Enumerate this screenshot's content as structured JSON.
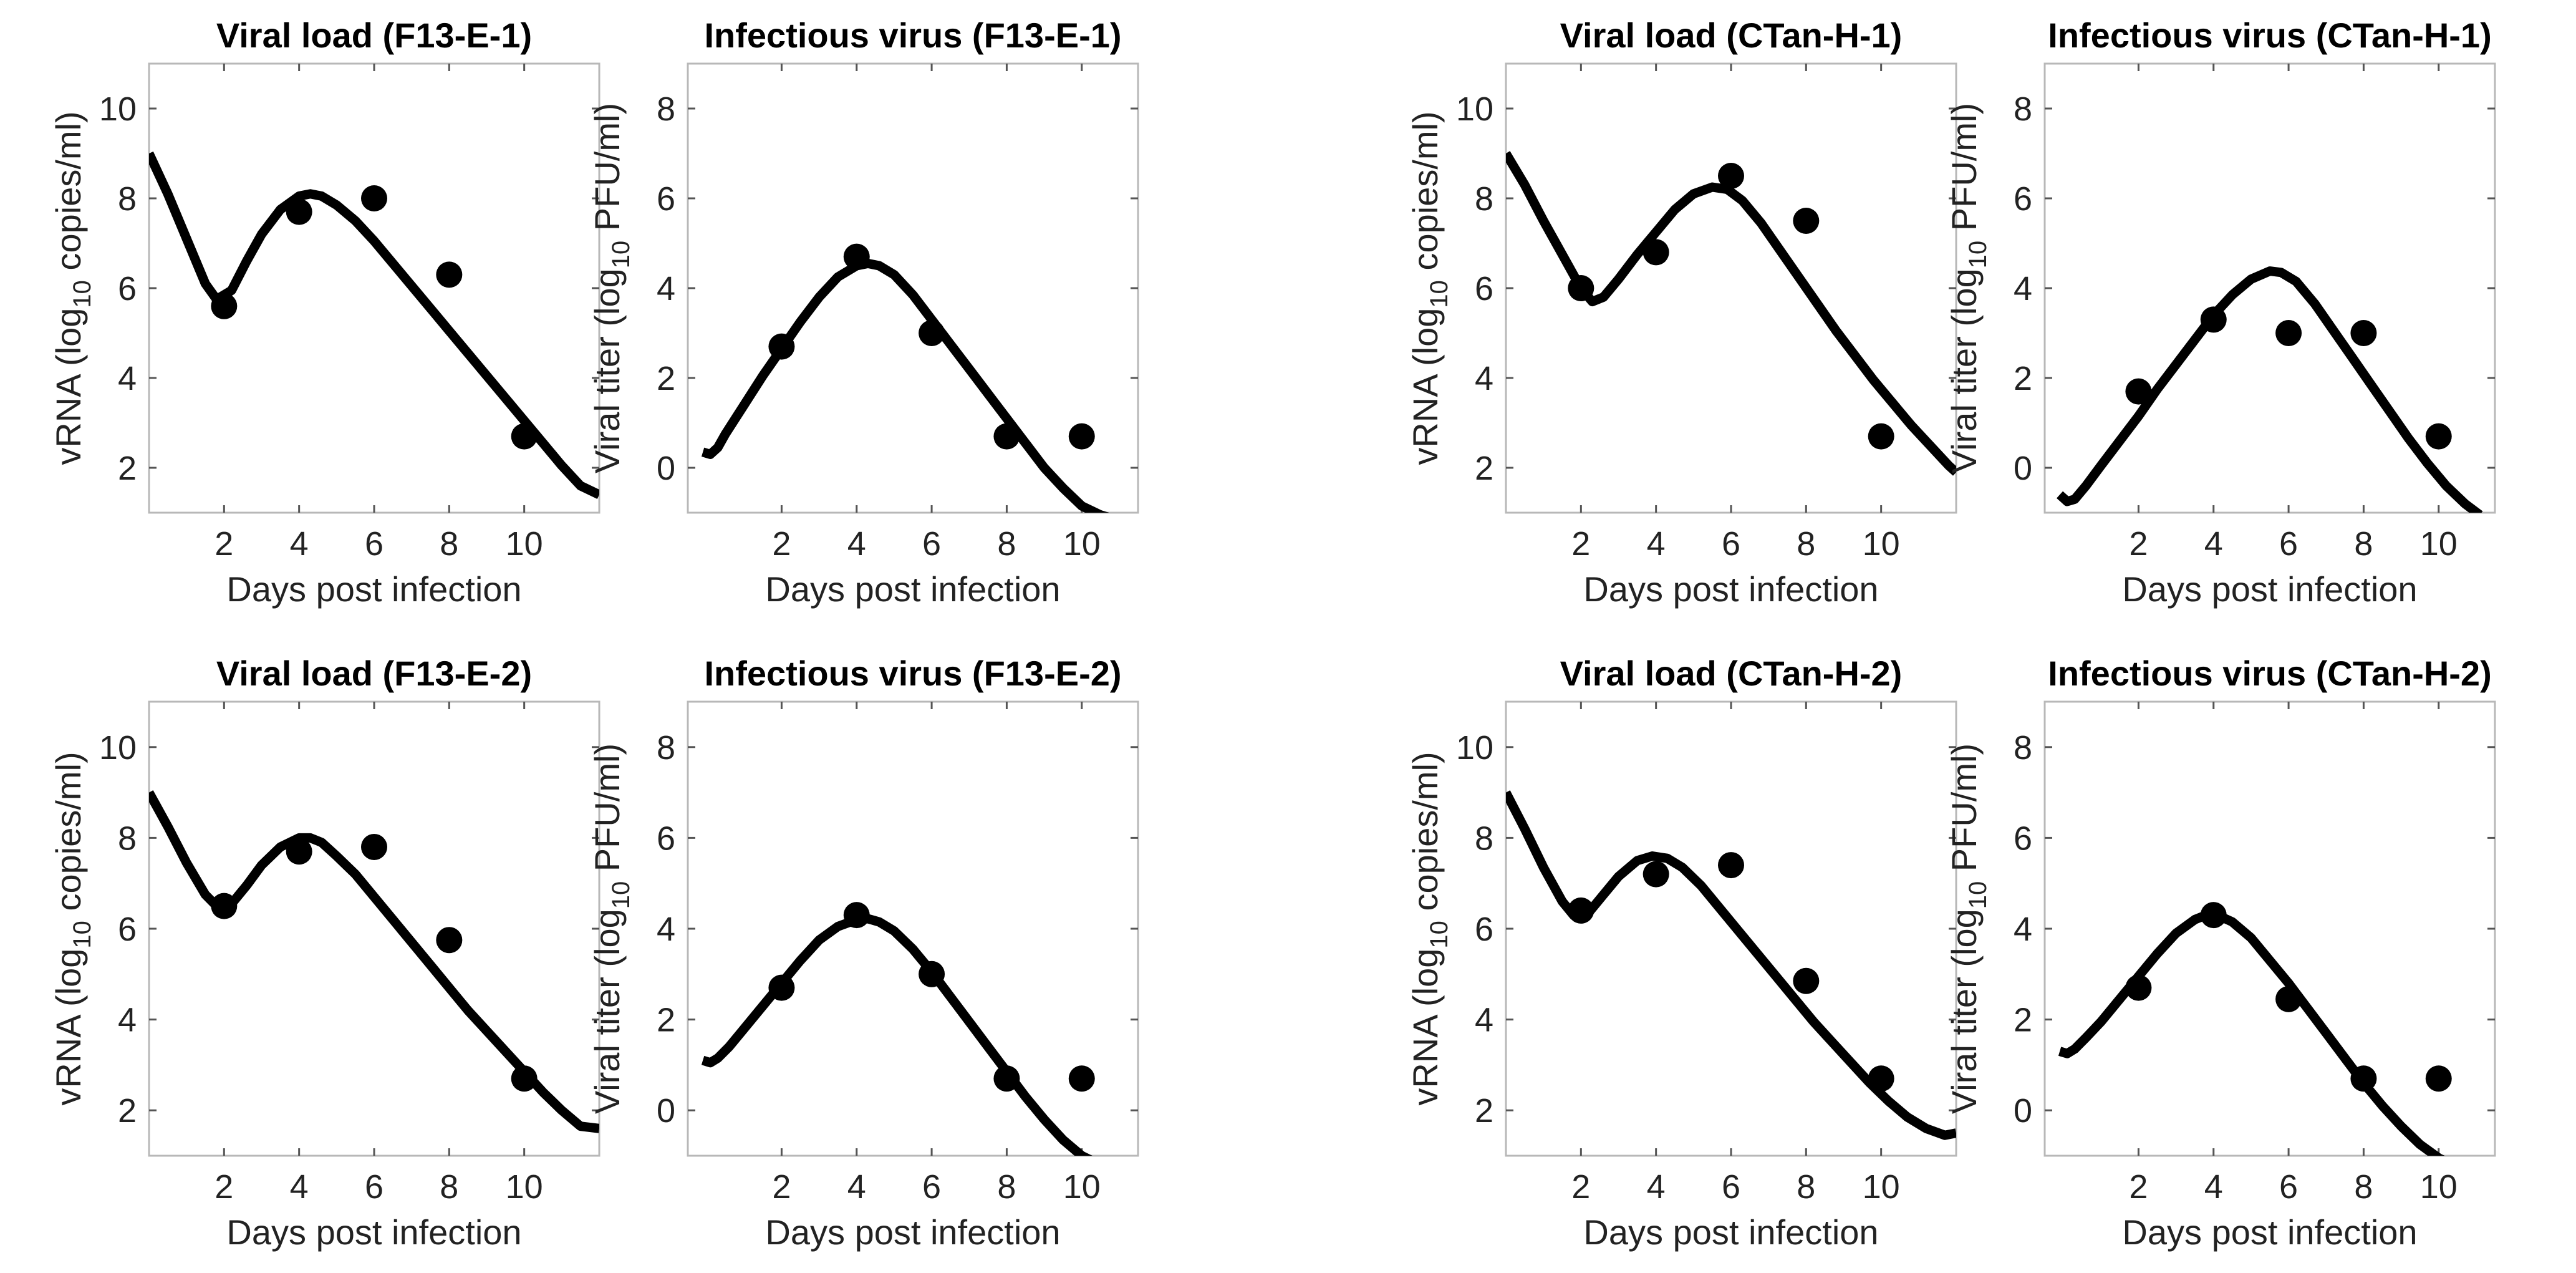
{
  "chart_data": [
    {
      "type": "scatter",
      "title": "Viral load (F13-E-1)",
      "xlabel": "Days post infection",
      "ylabel_parts": [
        "vRNA (log",
        "10",
        " copies/ml)"
      ],
      "xlim": [
        0,
        12
      ],
      "ylim": [
        1,
        11
      ],
      "xticks": [
        2,
        4,
        6,
        8,
        10
      ],
      "yticks": [
        2,
        4,
        6,
        8,
        10
      ],
      "x": [
        2,
        4,
        6,
        8,
        10
      ],
      "values": [
        5.6,
        7.7,
        8.0,
        6.3,
        2.7
      ],
      "fit": {
        "x": [
          0,
          0.5,
          1,
          1.5,
          1.8,
          2.2,
          2.6,
          3,
          3.5,
          4,
          4.3,
          4.6,
          5,
          5.5,
          6,
          6.5,
          7,
          7.5,
          8,
          8.5,
          9,
          9.5,
          10,
          10.5,
          11,
          11.5,
          12
        ],
        "y": [
          9.0,
          8.1,
          7.1,
          6.1,
          5.75,
          5.95,
          6.6,
          7.2,
          7.75,
          8.05,
          8.1,
          8.05,
          7.85,
          7.5,
          7.05,
          6.55,
          6.05,
          5.55,
          5.05,
          4.55,
          4.05,
          3.55,
          3.05,
          2.55,
          2.05,
          1.6,
          1.4
        ]
      }
    },
    {
      "type": "scatter",
      "title": "Infectious virus (F13-E-1)",
      "xlabel": "Days post infection",
      "ylabel_parts": [
        "Viral titer (log",
        "10",
        " PFU/ml)"
      ],
      "xlim": [
        -0.5,
        11.5
      ],
      "ylim": [
        -1,
        9
      ],
      "xticks": [
        2,
        4,
        6,
        8,
        10
      ],
      "yticks": [
        0,
        2,
        4,
        6,
        8
      ],
      "x": [
        2,
        4,
        6,
        8,
        10
      ],
      "values": [
        2.7,
        4.7,
        3.0,
        0.7,
        0.7
      ],
      "fit": {
        "x": [
          -0.1,
          0.1,
          0.3,
          0.5,
          1,
          1.5,
          2,
          2.5,
          3,
          3.5,
          4,
          4.3,
          4.6,
          5,
          5.5,
          6,
          6.5,
          7,
          7.5,
          8,
          8.5,
          9,
          9.5,
          10,
          10.5,
          10.9
        ],
        "y": [
          0.35,
          0.3,
          0.45,
          0.75,
          1.4,
          2.05,
          2.65,
          3.25,
          3.8,
          4.25,
          4.5,
          4.55,
          4.5,
          4.3,
          3.85,
          3.3,
          2.75,
          2.2,
          1.65,
          1.1,
          0.55,
          0.0,
          -0.45,
          -0.85,
          -1.05,
          -1.15
        ]
      }
    },
    {
      "type": "scatter",
      "title": "Viral load (CTan-H-1)",
      "xlabel": "Days post infection",
      "ylabel_parts": [
        "vRNA (log",
        "10",
        " copies/ml)"
      ],
      "xlim": [
        0,
        12
      ],
      "ylim": [
        1,
        11
      ],
      "xticks": [
        2,
        4,
        6,
        8,
        10
      ],
      "yticks": [
        2,
        4,
        6,
        8,
        10
      ],
      "x": [
        2,
        4,
        6,
        8,
        10
      ],
      "values": [
        6.0,
        6.8,
        8.5,
        7.5,
        2.7
      ],
      "fit": {
        "x": [
          0,
          0.5,
          1,
          1.5,
          2,
          2.3,
          2.6,
          3,
          3.5,
          4,
          4.5,
          5,
          5.5,
          5.9,
          6.3,
          6.8,
          7.3,
          7.8,
          8.3,
          8.8,
          9.3,
          9.8,
          10.3,
          10.8,
          11.3,
          11.8,
          12
        ],
        "y": [
          9.0,
          8.3,
          7.5,
          6.75,
          6.0,
          5.7,
          5.8,
          6.2,
          6.75,
          7.25,
          7.75,
          8.1,
          8.25,
          8.2,
          7.95,
          7.45,
          6.85,
          6.25,
          5.65,
          5.05,
          4.5,
          3.95,
          3.45,
          2.95,
          2.5,
          2.05,
          1.9
        ]
      }
    },
    {
      "type": "scatter",
      "title": "Infectious virus (CTan-H-1)",
      "xlabel": "Days post infection",
      "ylabel_parts": [
        "Viral titer (log",
        "10",
        " PFU/ml)"
      ],
      "xlim": [
        -0.5,
        11.5
      ],
      "ylim": [
        -1,
        9
      ],
      "xticks": [
        2,
        4,
        6,
        8,
        10
      ],
      "yticks": [
        0,
        2,
        4,
        6,
        8
      ],
      "x": [
        2,
        4,
        6,
        8,
        10
      ],
      "values": [
        1.7,
        3.3,
        3.0,
        3.0,
        0.7
      ],
      "fit": {
        "x": [
          -0.1,
          0.1,
          0.3,
          0.6,
          1,
          1.5,
          2,
          2.5,
          3,
          3.5,
          4,
          4.5,
          5,
          5.5,
          5.8,
          6.2,
          6.7,
          7.2,
          7.7,
          8.2,
          8.7,
          9.2,
          9.7,
          10.2,
          10.7,
          11.1
        ],
        "y": [
          -0.6,
          -0.75,
          -0.7,
          -0.4,
          0.05,
          0.6,
          1.15,
          1.75,
          2.3,
          2.85,
          3.4,
          3.85,
          4.2,
          4.38,
          4.35,
          4.15,
          3.65,
          3.05,
          2.45,
          1.85,
          1.25,
          0.65,
          0.1,
          -0.4,
          -0.8,
          -1.05
        ]
      }
    },
    {
      "type": "scatter",
      "title": "Viral load (F13-E-2)",
      "xlabel": "Days post infection",
      "ylabel_parts": [
        "vRNA (log",
        "10",
        " copies/ml)"
      ],
      "xlim": [
        0,
        12
      ],
      "ylim": [
        1,
        11
      ],
      "xticks": [
        2,
        4,
        6,
        8,
        10
      ],
      "yticks": [
        2,
        4,
        6,
        8,
        10
      ],
      "x": [
        2,
        4,
        6,
        8,
        10
      ],
      "values": [
        6.5,
        7.7,
        7.8,
        5.75,
        2.7
      ],
      "fit": {
        "x": [
          0,
          0.5,
          1,
          1.5,
          1.8,
          2.2,
          2.6,
          3,
          3.5,
          4,
          4.3,
          4.6,
          5,
          5.5,
          6,
          6.5,
          7,
          7.5,
          8,
          8.5,
          9,
          9.5,
          10,
          10.5,
          11,
          11.5,
          12
        ],
        "y": [
          9.0,
          8.25,
          7.45,
          6.75,
          6.5,
          6.55,
          6.95,
          7.4,
          7.8,
          8.0,
          8.0,
          7.9,
          7.6,
          7.2,
          6.7,
          6.2,
          5.7,
          5.2,
          4.7,
          4.2,
          3.75,
          3.3,
          2.85,
          2.4,
          2.0,
          1.65,
          1.6
        ]
      }
    },
    {
      "type": "scatter",
      "title": "Infectious virus (F13-E-2)",
      "xlabel": "Days post infection",
      "ylabel_parts": [
        "Viral titer (log",
        "10",
        " PFU/ml)"
      ],
      "xlim": [
        -0.5,
        11.5
      ],
      "ylim": [
        -1,
        9
      ],
      "xticks": [
        2,
        4,
        6,
        8,
        10
      ],
      "yticks": [
        0,
        2,
        4,
        6,
        8
      ],
      "x": [
        2,
        4,
        6,
        8,
        10
      ],
      "values": [
        2.7,
        4.3,
        3.0,
        0.7,
        0.7
      ],
      "fit": {
        "x": [
          -0.1,
          0.1,
          0.3,
          0.6,
          1,
          1.5,
          2,
          2.5,
          3,
          3.5,
          4,
          4.3,
          4.6,
          5,
          5.5,
          6,
          6.5,
          7,
          7.5,
          8,
          8.5,
          9,
          9.5,
          10,
          10.5,
          11
        ],
        "y": [
          1.1,
          1.05,
          1.15,
          1.4,
          1.8,
          2.3,
          2.8,
          3.3,
          3.75,
          4.05,
          4.2,
          4.22,
          4.15,
          3.95,
          3.55,
          3.05,
          2.5,
          1.95,
          1.4,
          0.85,
          0.3,
          -0.2,
          -0.65,
          -1.0,
          -1.2,
          -1.3
        ]
      }
    },
    {
      "type": "scatter",
      "title": "Viral load (CTan-H-2)",
      "xlabel": "Days post infection",
      "ylabel_parts": [
        "vRNA (log",
        "10",
        " copies/ml)"
      ],
      "xlim": [
        0,
        12
      ],
      "ylim": [
        1,
        11
      ],
      "xticks": [
        2,
        4,
        6,
        8,
        10
      ],
      "yticks": [
        2,
        4,
        6,
        8,
        10
      ],
      "x": [
        2,
        4,
        6,
        8,
        10
      ],
      "values": [
        6.4,
        7.2,
        7.4,
        4.85,
        2.7
      ],
      "fit": {
        "x": [
          0,
          0.5,
          1,
          1.5,
          1.8,
          2.2,
          2.6,
          3,
          3.5,
          3.9,
          4.3,
          4.7,
          5.2,
          5.7,
          6.2,
          6.7,
          7.2,
          7.7,
          8.2,
          8.7,
          9.2,
          9.7,
          10.2,
          10.7,
          11.2,
          11.7,
          12
        ],
        "y": [
          9.0,
          8.2,
          7.35,
          6.6,
          6.3,
          6.35,
          6.75,
          7.15,
          7.5,
          7.6,
          7.55,
          7.35,
          6.95,
          6.45,
          5.95,
          5.45,
          4.95,
          4.45,
          3.95,
          3.5,
          3.05,
          2.6,
          2.2,
          1.85,
          1.6,
          1.45,
          1.5
        ]
      }
    },
    {
      "type": "scatter",
      "title": "Infectious virus (CTan-H-2)",
      "xlabel": "Days post infection",
      "ylabel_parts": [
        "Viral titer (log",
        "10",
        " PFU/ml)"
      ],
      "xlim": [
        -0.5,
        11.5
      ],
      "ylim": [
        -1,
        9
      ],
      "xticks": [
        2,
        4,
        6,
        8,
        10
      ],
      "yticks": [
        0,
        2,
        4,
        6,
        8
      ],
      "x": [
        2,
        4,
        6,
        8,
        10
      ],
      "values": [
        2.7,
        4.3,
        2.45,
        0.7,
        0.7
      ],
      "fit": {
        "x": [
          -0.1,
          0.1,
          0.3,
          0.6,
          1,
          1.5,
          2,
          2.5,
          3,
          3.5,
          3.8,
          4.1,
          4.5,
          5,
          5.5,
          6,
          6.5,
          7,
          7.5,
          8,
          8.5,
          9,
          9.5,
          10,
          10.5,
          10.9
        ],
        "y": [
          1.3,
          1.25,
          1.35,
          1.6,
          1.95,
          2.45,
          2.95,
          3.45,
          3.9,
          4.2,
          4.3,
          4.3,
          4.15,
          3.8,
          3.3,
          2.8,
          2.25,
          1.7,
          1.15,
          0.6,
          0.1,
          -0.35,
          -0.75,
          -1.05,
          -1.25,
          -1.35
        ]
      }
    }
  ]
}
